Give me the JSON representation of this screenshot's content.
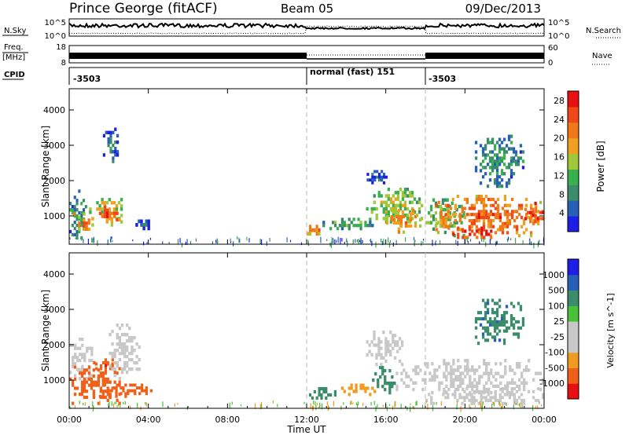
{
  "header": {
    "station": "Prince George (fitACF)",
    "beam": "Beam 05",
    "date": "09/Dec/2013"
  },
  "summary_panels": {
    "nsky_label": "N.Sky",
    "nsky_ticks": [
      "10^5",
      "10^0"
    ],
    "nsearch_label": "N.Search",
    "nsearch_ticks": [
      "10^5",
      "10^0"
    ],
    "freq_label_line1": "Freq.",
    "freq_label_line2": "[MHz]",
    "freq_ticks": [
      "18",
      "8"
    ],
    "nave_label": "Nave",
    "nave_ticks": [
      "60",
      "0"
    ],
    "cpid_label": "CPID",
    "cpid_segments": [
      {
        "label": "-3503",
        "start_h": 0,
        "end_h": 12
      },
      {
        "label": "normal (fast) 151",
        "start_h": 12,
        "end_h": 18
      },
      {
        "label": "-3503",
        "start_h": 18,
        "end_h": 24
      }
    ]
  },
  "time_axis": {
    "title": "Time UT",
    "ticks": [
      "00:00",
      "04:00",
      "08:00",
      "12:00",
      "16:00",
      "20:00",
      "00:00"
    ]
  },
  "colors": {
    "power_scale": [
      "#1e1ee6",
      "#2860b8",
      "#3a8c6a",
      "#38b04e",
      "#a0c838",
      "#f0a020",
      "#f07818",
      "#f04818",
      "#e81010"
    ],
    "velocity_scale": [
      "#e81010",
      "#f06018",
      "#f09a20",
      "#c8c8c8",
      "#c8c8c8",
      "#48c038",
      "#3a8c6a",
      "#2860b8",
      "#1e1ee6"
    ]
  },
  "chart_data": [
    {
      "type": "heatmap",
      "name": "power-panel",
      "ylabel": "Slant Range [km]",
      "ylim": [
        200,
        4600
      ],
      "yticks": [
        "1000",
        "2000",
        "3000",
        "4000"
      ],
      "xlim_hours": [
        0,
        24
      ],
      "colorbar_label": "Power [dB]",
      "colorbar_ticks": [
        "4",
        "8",
        "12",
        "16",
        "20",
        "24",
        "28"
      ],
      "colorbar_range": [
        0,
        30
      ],
      "patches": [
        {
          "t0": 0.0,
          "t1": 0.9,
          "r0": 250,
          "r1": 1750,
          "v": 10
        },
        {
          "t0": 0.2,
          "t1": 1.3,
          "r0": 500,
          "r1": 1100,
          "v": 22
        },
        {
          "t0": 1.0,
          "t1": 2.7,
          "r0": 700,
          "r1": 1600,
          "v": 18
        },
        {
          "t0": 1.5,
          "t1": 2.6,
          "r0": 850,
          "r1": 1300,
          "v": 26
        },
        {
          "t0": 1.7,
          "t1": 2.5,
          "r0": 2500,
          "r1": 3500,
          "v": 8
        },
        {
          "t0": 3.1,
          "t1": 4.2,
          "r0": 600,
          "r1": 900,
          "v": 8
        },
        {
          "t0": 12.0,
          "t1": 12.8,
          "r0": 450,
          "r1": 750,
          "v": 22
        },
        {
          "t0": 12.8,
          "t1": 15.5,
          "r0": 600,
          "r1": 950,
          "v": 12
        },
        {
          "t0": 15.0,
          "t1": 18.0,
          "r0": 700,
          "r1": 1800,
          "v": 16
        },
        {
          "t0": 14.8,
          "t1": 16.2,
          "r0": 1900,
          "r1": 2300,
          "v": 6
        },
        {
          "t0": 16.0,
          "t1": 17.8,
          "r0": 500,
          "r1": 1200,
          "v": 22
        },
        {
          "t0": 18.0,
          "t1": 20.0,
          "r0": 400,
          "r1": 1500,
          "v": 14
        },
        {
          "t0": 18.5,
          "t1": 24.0,
          "r0": 400,
          "r1": 1600,
          "v": 24
        },
        {
          "t0": 19.0,
          "t1": 21.5,
          "r0": 350,
          "r1": 700,
          "v": 28
        },
        {
          "t0": 20.5,
          "t1": 23.0,
          "r0": 1800,
          "r1": 3300,
          "v": 10
        },
        {
          "t0": 23.0,
          "t1": 24.0,
          "r0": 800,
          "r1": 1400,
          "v": 28
        }
      ]
    },
    {
      "type": "heatmap",
      "name": "velocity-panel",
      "ylabel": "Slant Range [km]",
      "ylim": [
        200,
        4600
      ],
      "yticks": [
        "1000",
        "2000",
        "3000",
        "4000"
      ],
      "xlim_hours": [
        0,
        24
      ],
      "colorbar_label": "Velocity [m s^-1]",
      "colorbar_ticks": [
        "1000",
        "500",
        "100",
        "25",
        "-25",
        "-100",
        "-500",
        "-1000"
      ],
      "colorbar_range": [
        -1000,
        1000
      ],
      "patches": [
        {
          "t0": 0.0,
          "t1": 1.2,
          "r0": 1000,
          "r1": 2200,
          "v": 0
        },
        {
          "t0": 0.0,
          "t1": 2.6,
          "r0": 300,
          "r1": 1500,
          "v": -200
        },
        {
          "t0": 1.2,
          "t1": 2.6,
          "r0": 1200,
          "r1": 1700,
          "v": -400
        },
        {
          "t0": 2.0,
          "t1": 3.6,
          "r0": 1000,
          "r1": 2600,
          "v": 0
        },
        {
          "t0": 1.5,
          "t1": 4.2,
          "r0": 500,
          "r1": 900,
          "v": -200
        },
        {
          "t0": 12.0,
          "t1": 13.5,
          "r0": 450,
          "r1": 800,
          "v": 150
        },
        {
          "t0": 13.5,
          "t1": 15.5,
          "r0": 550,
          "r1": 900,
          "v": -60
        },
        {
          "t0": 15.3,
          "t1": 16.5,
          "r0": 600,
          "r1": 1400,
          "v": 150
        },
        {
          "t0": 15.0,
          "t1": 17.0,
          "r0": 1400,
          "r1": 2400,
          "v": 0
        },
        {
          "t0": 16.5,
          "t1": 24.0,
          "r0": 600,
          "r1": 1600,
          "v": 0
        },
        {
          "t0": 18.0,
          "t1": 24.0,
          "r0": 300,
          "r1": 800,
          "v": 0
        },
        {
          "t0": 20.5,
          "t1": 23.0,
          "r0": 2000,
          "r1": 3300,
          "v": 400
        }
      ]
    }
  ]
}
